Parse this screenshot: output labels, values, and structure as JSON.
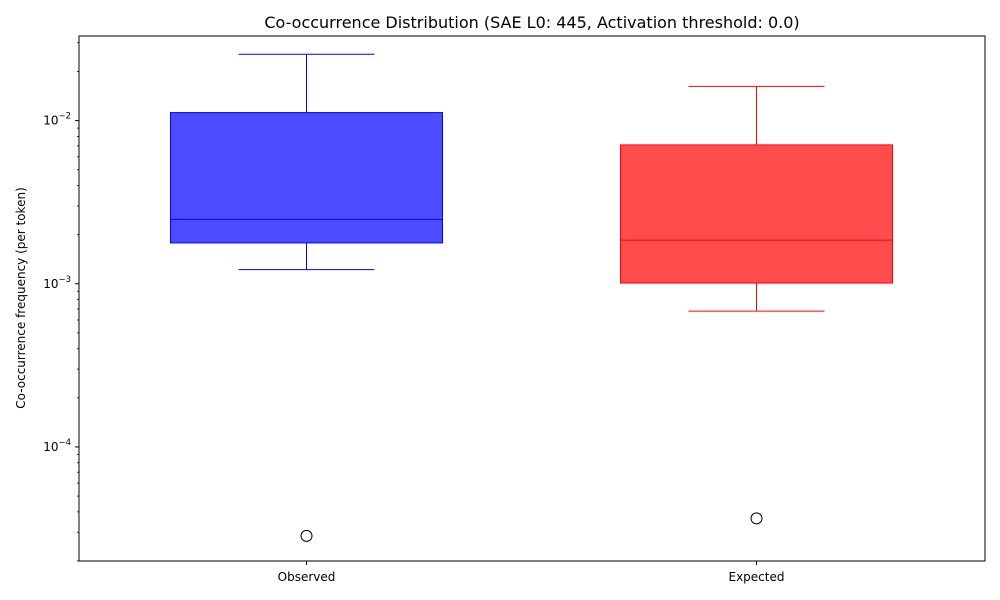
{
  "chart_data": {
    "type": "box",
    "title": "Co-occurrence Distribution (SAE L0: 445, Activation threshold: 0.0)",
    "xlabel": "",
    "ylabel": "Co-occurrence frequency (per token)",
    "yscale": "log",
    "ylim": [
      2e-05,
      0.033
    ],
    "yticks": [
      {
        "value": 0.0001,
        "base": "10",
        "exp": "−4"
      },
      {
        "value": 0.001,
        "base": "10",
        "exp": "−3"
      },
      {
        "value": 0.01,
        "base": "10",
        "exp": "−2"
      }
    ],
    "categories": [
      "Observed",
      "Expected"
    ],
    "boxes": [
      {
        "name": "Observed",
        "whisker_low": 0.00122,
        "q1": 0.00178,
        "median": 0.00248,
        "q3": 0.0112,
        "whisker_high": 0.0255,
        "outliers": [
          2.85e-05
        ],
        "color": "#0000ff"
      },
      {
        "name": "Expected",
        "whisker_low": 0.00068,
        "q1": 0.00101,
        "median": 0.00185,
        "q3": 0.0071,
        "whisker_high": 0.0162,
        "outliers": [
          3.65e-05
        ],
        "color": "#ff0000"
      }
    ],
    "grid": false
  }
}
